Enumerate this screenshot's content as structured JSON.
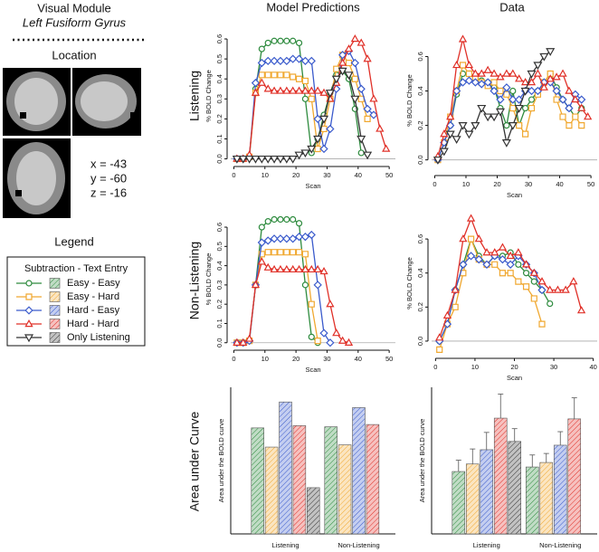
{
  "header": {
    "title": "Visual Module",
    "subtitle": "Left Fusiform Gyrus"
  },
  "location": {
    "title": "Location",
    "coords": [
      "x = -43",
      "y = -60",
      "z = -16"
    ]
  },
  "legend": {
    "title": "Legend",
    "heading": "Subtraction - Text Entry"
  },
  "columns": [
    "Model Predictions",
    "Data"
  ],
  "rows": [
    "Listening",
    "Non-Listening",
    "Area under Curve"
  ],
  "chart_data": [
    {
      "type": "line",
      "xlabel": "Scan",
      "ylabel": "% BOLD Change",
      "x": [
        1,
        3,
        5,
        7,
        9,
        11,
        13,
        15,
        17,
        19,
        21,
        23,
        25,
        27,
        29,
        31,
        33,
        35,
        37,
        39,
        41,
        43,
        45,
        47,
        49
      ],
      "xlim": [
        -1,
        52
      ],
      "xticks": [
        0,
        10,
        20,
        30,
        40,
        50
      ],
      "ylim": [
        -0.02,
        0.65
      ],
      "yticks": [
        {
          "value": 0,
          "label": "0.0"
        },
        0.1,
        0.2,
        0.3,
        0.4,
        0.5,
        0.6
      ],
      "reference_line": 0,
      "series": [
        {
          "name": "Easy - Easy",
          "color": "#2e8b3e",
          "marker": "circle",
          "values": [
            0,
            0,
            0.01,
            0.35,
            0.55,
            0.58,
            0.59,
            0.59,
            0.59,
            0.59,
            0.58,
            0.3,
            0.03,
            0.1,
            0.22,
            0.33,
            0.42,
            0.44,
            0.4,
            0.25,
            0.03,
            null,
            null,
            null,
            null
          ]
        },
        {
          "name": "Easy - Hard",
          "color": "#f0a830",
          "marker": "square",
          "values": [
            0,
            0,
            0.01,
            0.33,
            0.42,
            0.42,
            0.42,
            0.42,
            0.42,
            0.41,
            0.4,
            0.39,
            0.3,
            0.05,
            0.15,
            0.3,
            0.45,
            0.52,
            0.48,
            0.4,
            0.3,
            0.2,
            null,
            null,
            null
          ]
        },
        {
          "name": "Hard - Easy",
          "color": "#3b5bcc",
          "marker": "diamond",
          "values": [
            0,
            0,
            0.01,
            0.38,
            0.48,
            0.49,
            0.49,
            0.49,
            0.49,
            0.5,
            0.5,
            0.49,
            0.49,
            0.2,
            0.05,
            0.15,
            0.35,
            0.52,
            0.54,
            0.48,
            0.35,
            0.25,
            0.22,
            null,
            null
          ]
        },
        {
          "name": "Hard - Hard",
          "color": "#e03028",
          "marker": "triangle",
          "values": [
            0,
            0,
            0.02,
            0.33,
            0.38,
            0.35,
            0.34,
            0.34,
            0.34,
            0.34,
            0.34,
            0.34,
            0.34,
            0.34,
            0.33,
            0.3,
            0.38,
            0.48,
            0.55,
            0.6,
            0.58,
            0.5,
            0.3,
            0.15,
            0.05
          ]
        },
        {
          "name": "Only Listening",
          "color": "#333333",
          "marker": "triangle-down",
          "values": [
            0,
            0,
            0,
            0,
            0,
            0,
            0,
            0,
            0,
            0,
            0.02,
            0.03,
            0.05,
            0.1,
            0.2,
            0.33,
            0.4,
            0.44,
            0.42,
            0.3,
            0.1,
            0.02,
            null,
            null,
            null
          ]
        }
      ]
    },
    {
      "type": "line",
      "xlabel": "Scan",
      "ylabel": "% BOLD Change",
      "x": [
        1,
        3,
        5,
        7,
        9,
        11,
        13,
        15,
        17,
        19,
        21,
        23,
        25,
        27,
        29,
        31,
        33,
        35,
        37,
        39,
        41,
        43,
        45,
        47,
        49
      ],
      "xlim": [
        -1,
        52
      ],
      "xticks": [
        0,
        10,
        20,
        30,
        40,
        50
      ],
      "ylim": [
        -0.07,
        0.76
      ],
      "yticks": [
        {
          "value": 0,
          "label": "0.0"
        },
        0.2,
        0.4,
        0.6
      ],
      "reference_line": 0,
      "series": [
        {
          "color": "#2e8b3e",
          "marker": "circle",
          "values": [
            0,
            0.1,
            0.2,
            0.38,
            0.5,
            0.5,
            0.48,
            0.46,
            0.45,
            0.42,
            0.3,
            0.2,
            0.4,
            0.2,
            0.3,
            0.35,
            0.4,
            0.45,
            0.5,
            0.42,
            0.35,
            0.3,
            0.25,
            0.3,
            null
          ]
        },
        {
          "color": "#f0a830",
          "marker": "square",
          "values": [
            0,
            0.1,
            0.25,
            0.4,
            0.55,
            0.5,
            0.48,
            0.45,
            0.43,
            0.45,
            0.4,
            0.38,
            0.3,
            0.2,
            0.15,
            0.3,
            0.38,
            0.45,
            0.5,
            0.35,
            0.25,
            0.2,
            0.25,
            0.2,
            null
          ]
        },
        {
          "color": "#3b5bcc",
          "marker": "diamond",
          "values": [
            0,
            0.1,
            0.2,
            0.4,
            0.45,
            0.46,
            0.45,
            0.44,
            0.45,
            0.4,
            0.35,
            0.42,
            0.35,
            0.35,
            0.4,
            0.4,
            0.4,
            0.45,
            0.45,
            0.4,
            0.35,
            0.3,
            0.38,
            0.35,
            null
          ]
        },
        {
          "color": "#e03028",
          "marker": "triangle",
          "values": [
            0.02,
            0.15,
            0.25,
            0.55,
            0.7,
            0.55,
            0.5,
            0.5,
            0.52,
            0.5,
            0.48,
            0.5,
            0.5,
            0.47,
            0.45,
            0.45,
            0.5,
            0.42,
            0.47,
            0.48,
            0.5,
            0.4,
            0.35,
            0.3,
            0.25
          ]
        },
        {
          "color": "#333333",
          "marker": "triangle-down",
          "values": [
            0,
            0.05,
            0.15,
            0.12,
            0.2,
            0.15,
            0.2,
            0.3,
            0.25,
            0.25,
            0.28,
            0.1,
            0.2,
            0.3,
            0.4,
            0.5,
            0.55,
            0.6,
            0.63,
            null,
            null,
            null,
            null,
            null,
            null
          ]
        }
      ]
    },
    {
      "type": "line",
      "xlabel": "Scan",
      "ylabel": "% BOLD Change",
      "x": [
        1,
        3,
        5,
        7,
        9,
        11,
        13,
        15,
        17,
        19,
        21,
        23,
        25,
        27,
        29,
        31,
        33,
        35,
        37
      ],
      "xlim": [
        -1,
        52
      ],
      "xticks": [
        0,
        10,
        20,
        30,
        40,
        50
      ],
      "ylim": [
        -0.02,
        0.68
      ],
      "yticks": [
        {
          "value": 0,
          "label": "0.0"
        },
        0.1,
        0.2,
        0.3,
        0.4,
        0.5,
        0.6
      ],
      "reference_line": 0,
      "series": [
        {
          "color": "#2e8b3e",
          "marker": "circle",
          "values": [
            0,
            0,
            0.01,
            0.3,
            0.6,
            0.63,
            0.64,
            0.64,
            0.64,
            0.64,
            0.62,
            0.3,
            0.03,
            0,
            null,
            null,
            null,
            null,
            null
          ]
        },
        {
          "color": "#f0a830",
          "marker": "square",
          "values": [
            0,
            0,
            0.01,
            0.3,
            0.46,
            0.47,
            0.47,
            0.47,
            0.47,
            0.47,
            0.47,
            0.46,
            0.2,
            0.01,
            null,
            null,
            null,
            null,
            null
          ]
        },
        {
          "color": "#3b5bcc",
          "marker": "diamond",
          "values": [
            0,
            0,
            0.01,
            0.3,
            0.52,
            0.53,
            0.54,
            0.54,
            0.54,
            0.54,
            0.55,
            0.55,
            0.56,
            0.3,
            0.05,
            0,
            null,
            null,
            null
          ]
        },
        {
          "color": "#e03028",
          "marker": "triangle",
          "values": [
            0,
            0,
            0.02,
            0.3,
            0.42,
            0.39,
            0.38,
            0.38,
            0.38,
            0.38,
            0.38,
            0.38,
            0.38,
            0.38,
            0.37,
            0.2,
            0.05,
            0.01,
            0
          ]
        }
      ]
    },
    {
      "type": "line",
      "xlabel": "Scan",
      "ylabel": "% BOLD Change",
      "x": [
        1,
        3,
        5,
        7,
        9,
        11,
        13,
        15,
        17,
        19,
        21,
        23,
        25,
        27,
        29,
        31,
        33,
        35,
        37
      ],
      "xlim": [
        -1,
        41
      ],
      "xticks": [
        0,
        10,
        20,
        30,
        40
      ],
      "ylim": [
        -0.08,
        0.76
      ],
      "yticks": [
        {
          "value": 0,
          "label": "0.0"
        },
        0.2,
        0.4,
        0.6
      ],
      "reference_line": 0,
      "series": [
        {
          "color": "#2e8b3e",
          "marker": "circle",
          "values": [
            0,
            0.1,
            0.3,
            0.45,
            0.6,
            0.5,
            0.45,
            0.5,
            0.5,
            0.52,
            0.45,
            0.4,
            0.35,
            0.3,
            0.22,
            null,
            null,
            null,
            null
          ]
        },
        {
          "color": "#f0a830",
          "marker": "square",
          "values": [
            -0.05,
            0.1,
            0.2,
            0.4,
            0.6,
            0.48,
            0.45,
            0.45,
            0.4,
            0.4,
            0.35,
            0.32,
            0.25,
            0.1,
            null,
            null,
            null,
            null,
            null
          ]
        },
        {
          "color": "#3b5bcc",
          "marker": "diamond",
          "values": [
            0,
            0.1,
            0.3,
            0.45,
            0.5,
            0.48,
            0.45,
            0.5,
            0.48,
            0.45,
            0.5,
            0.45,
            0.4,
            0.3,
            null,
            null,
            null,
            null,
            null
          ]
        },
        {
          "color": "#e03028",
          "marker": "triangle",
          "values": [
            0.02,
            0.15,
            0.3,
            0.6,
            0.72,
            0.6,
            0.52,
            0.52,
            0.55,
            0.5,
            0.52,
            0.45,
            0.4,
            0.35,
            0.3,
            0.3,
            0.3,
            0.35,
            0.18
          ]
        }
      ]
    },
    {
      "type": "bar",
      "ylabel": "Area under the BOLD curve",
      "categories": [
        "Listening",
        "Non-Listening"
      ],
      "ylim": [
        0,
        13
      ],
      "series": [
        {
          "color": "#2e8b3e",
          "values": [
            9.4,
            9.5
          ]
        },
        {
          "color": "#f0a830",
          "values": [
            7.7,
            7.9
          ]
        },
        {
          "color": "#3b5bcc",
          "values": [
            11.7,
            11.2
          ]
        },
        {
          "color": "#e03028",
          "values": [
            9.6,
            9.7
          ]
        },
        {
          "color": "#333333",
          "values": [
            4.1,
            null
          ]
        }
      ]
    },
    {
      "type": "bar",
      "ylabel": "Area under the BOLD curve",
      "categories": [
        "Listening",
        "Non-Listening"
      ],
      "ylim": [
        0,
        19.5
      ],
      "series": [
        {
          "color": "#2e8b3e",
          "values": [
            8.3,
            8.9
          ],
          "errors": [
            1.5,
            1.6
          ]
        },
        {
          "color": "#f0a830",
          "values": [
            9.3,
            9.5
          ],
          "errors": [
            2.0,
            1.2
          ]
        },
        {
          "color": "#3b5bcc",
          "values": [
            11.2,
            11.8
          ],
          "errors": [
            2.3,
            1.8
          ]
        },
        {
          "color": "#e03028",
          "values": [
            15.4,
            15.3
          ],
          "errors": [
            3.2,
            2.8
          ]
        },
        {
          "color": "#333333",
          "values": [
            12.3,
            null
          ],
          "errors": [
            1.7,
            null
          ]
        }
      ]
    }
  ]
}
